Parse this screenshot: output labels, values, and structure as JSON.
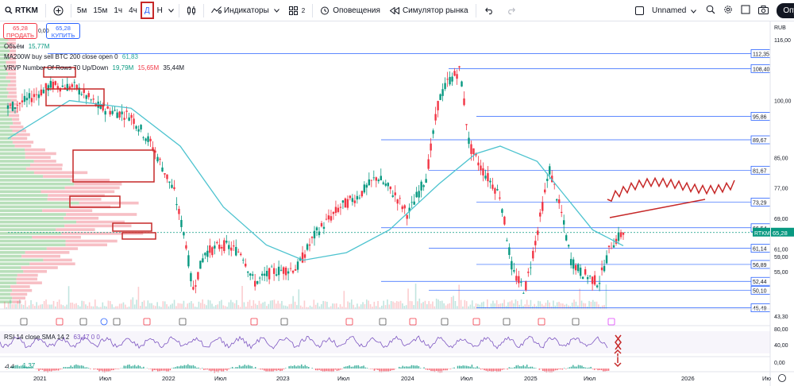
{
  "toolbar": {
    "symbol": "RTKM",
    "timeframes": [
      "5м",
      "15м",
      "1ч",
      "4ч",
      "Д",
      "Н"
    ],
    "active_timeframe": "Д",
    "indicators_label": "Индикаторы",
    "layouts_count": "2",
    "alerts_label": "Оповещения",
    "replay_label": "Симулятор рынка",
    "layout_name": "Unnamed",
    "publish_label": "Опубликов"
  },
  "trade": {
    "sell_price": "65,28",
    "sell_label": "ПРОДАТЬ",
    "spread": "0,00",
    "buy_price": "65,28",
    "buy_label": "КУПИТЬ"
  },
  "legends": {
    "volume": "Объём",
    "volume_value": "15,77M",
    "ma": "MA200W buy sell BTC 200 close open 0",
    "ma_value": "61,83",
    "vrvp": "VRVP Number Of Rows 70 Up/Down",
    "vrvp_up": "19,79M",
    "vrvp_down": "15,65M",
    "vrvp_total": "35,44M",
    "rsi": "RSI 14 close SMA 14 2",
    "rsi_values": "63,47  0  0",
    "macd_value": "1,37"
  },
  "colors": {
    "up": "#089981",
    "down": "#f23645",
    "ma_line": "#4dc3cf",
    "level_line": "#2962ff",
    "rsi_line": "#7e57c2",
    "annotation": "#c62828",
    "vp_up": "#9ad19c",
    "vp_down": "#f3a4ad"
  },
  "chart_data": {
    "type": "candlestick",
    "symbol": "RTKM",
    "interval": "Д",
    "currency": "RUB",
    "current_price": "65,28",
    "price_axis": [
      "116,00",
      "108,40",
      "100,00",
      "95,86",
      "89,67",
      "85,00",
      "81,67",
      "77,00",
      "73,29",
      "69,00",
      "66,54",
      "65,28",
      "61,00",
      "59,00",
      "56,89",
      "55,00",
      "52,44",
      "50,10",
      "45,49",
      "43,30"
    ],
    "level_labels": [
      "112,35",
      "108,40",
      "95,86",
      "89,67",
      "81,67",
      "73,29",
      "66,54",
      "61,14",
      "56,89",
      "52,44",
      "50,10",
      "45,49"
    ],
    "rsi_axis": [
      "80,00",
      "40,00",
      "0,00"
    ],
    "time_axis": [
      "2021",
      "Июл",
      "2022",
      "Июл",
      "2023",
      "Июл",
      "2024",
      "Июл",
      "2025",
      "Июл",
      "2026",
      "Ию"
    ],
    "ylim": [
      43.3,
      117
    ]
  }
}
